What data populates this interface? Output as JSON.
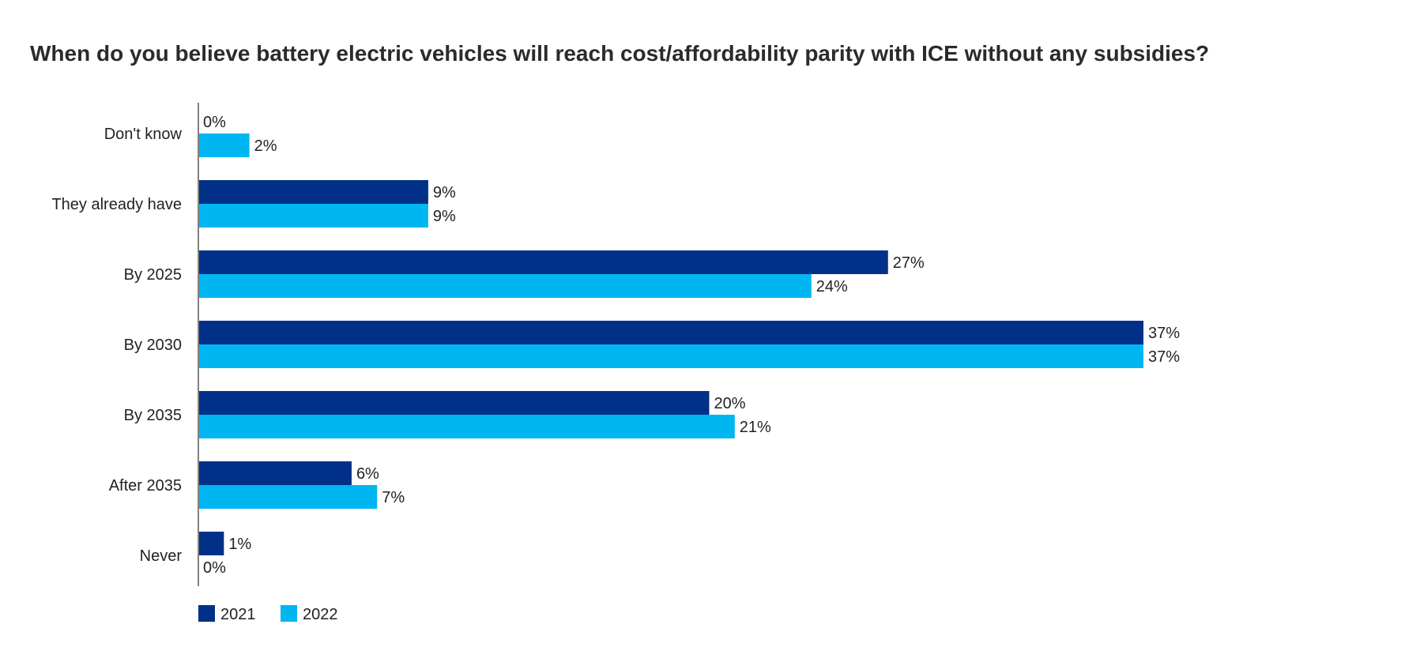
{
  "chart_data": {
    "type": "bar",
    "orientation": "horizontal",
    "title": "When do you believe battery electric vehicles will reach cost/affordability parity with ICE without any subsidies?",
    "categories": [
      "Don't know",
      "They already have",
      "By 2025",
      "By 2030",
      "By 2035",
      "After 2035",
      "Never"
    ],
    "series": [
      {
        "name": "2021",
        "color": "#003087",
        "values": [
          0,
          9,
          27,
          37,
          20,
          6,
          1
        ],
        "labels": [
          "0%",
          "9%",
          "27%",
          "37%",
          "20%",
          "6%",
          "1%"
        ]
      },
      {
        "name": "2022",
        "color": "#00b6f1",
        "values": [
          2,
          9,
          24,
          37,
          21,
          7,
          0
        ],
        "labels": [
          "2%",
          "9%",
          "24%",
          "37%",
          "21%",
          "7%",
          "0%"
        ]
      }
    ],
    "xlim": [
      0,
      37
    ],
    "value_format": "percent",
    "grid": false,
    "legend_position": "bottom-left"
  }
}
